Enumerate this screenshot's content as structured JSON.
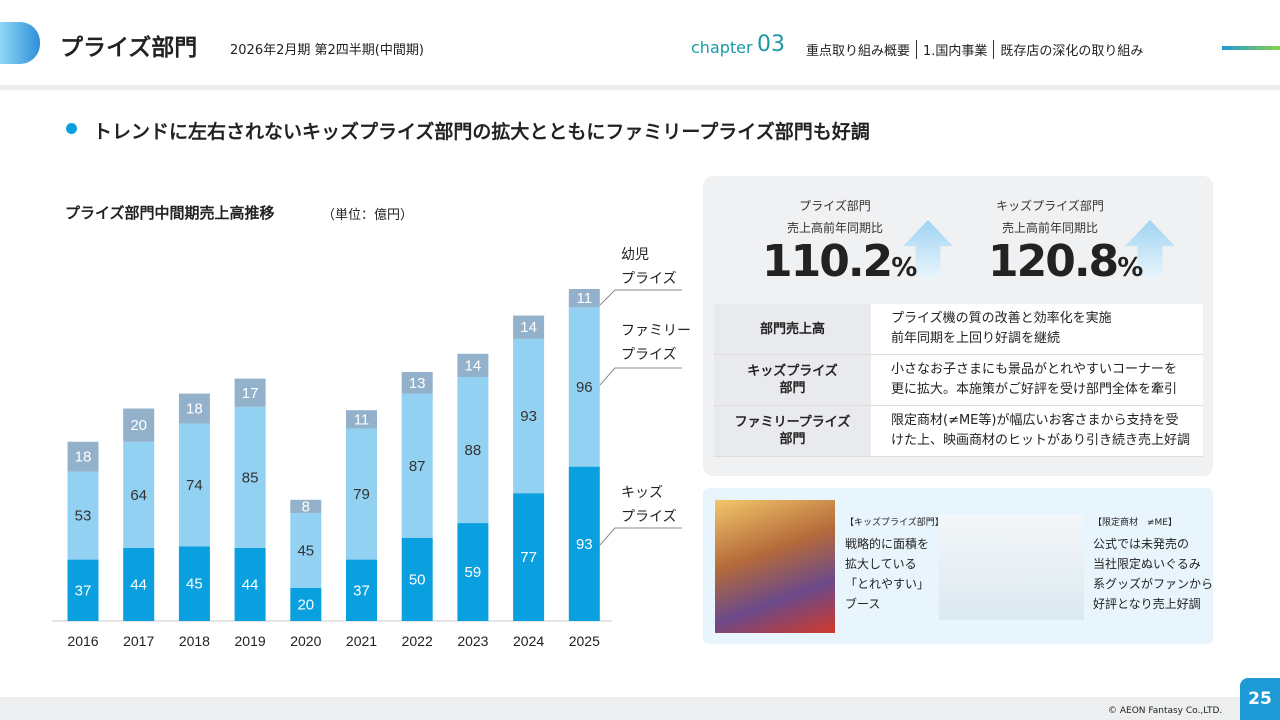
{
  "header": {
    "title": "プライズ部門",
    "period": "2026年2月期 第2四半期(中間期)",
    "chapter_label": "chapter",
    "chapter_number": "03",
    "breadcrumb": [
      "重点取り組み概要",
      "1.国内事業",
      "既存店の深化の取り組み"
    ]
  },
  "headline": "トレンドに左右されないキッズプライズ部門の拡大とともにファミリープライズ部門も好調",
  "chart_data": {
    "type": "bar",
    "stacked": true,
    "title": "プライズ部門中間期売上高推移",
    "unit": "（単位：億円）",
    "categories": [
      "2016",
      "2017",
      "2018",
      "2019",
      "2020",
      "2021",
      "2022",
      "2023",
      "2024",
      "2025"
    ],
    "series": [
      {
        "name": "キッズ\nプライズ",
        "color": "#0a9fde",
        "values": [
          37,
          44,
          45,
          44,
          20,
          37,
          50,
          59,
          77,
          93
        ]
      },
      {
        "name": "ファミリー\nプライズ",
        "color": "#92d1f2",
        "values": [
          53,
          64,
          74,
          85,
          45,
          79,
          87,
          88,
          93,
          96
        ]
      },
      {
        "name": "幼児\nプライズ",
        "color": "#93b1ca",
        "values": [
          18,
          20,
          18,
          17,
          8,
          11,
          13,
          14,
          14,
          11
        ]
      }
    ]
  },
  "kpis": [
    {
      "label": "プライズ部門\n売上高前年同期比",
      "value": 110.2,
      "unit": "%"
    },
    {
      "label": "キッズプライズ部門\n売上高前年同期比",
      "value": 120.8,
      "unit": "%"
    }
  ],
  "table": {
    "rows": [
      [
        "部門売上高",
        "プライズ機の質の改善と効率化を実施\n前年同期を上回り好調を継続"
      ],
      [
        "キッズプライズ\n部門",
        "小さなお子さまにも景品がとれやすいコーナーを\n更に拡大。本施策がご好評を受け部門全体を牽引"
      ],
      [
        "ファミリープライズ\n部門",
        "限定商材(≠ME等)が幅広いお客さまから支持を受\nけた上、映画商材のヒットがあり引き続き売上好調"
      ]
    ]
  },
  "photos": [
    {
      "tag": "【キッズプライズ部門】",
      "caption": "戦略的に面積を\n拡大している\n「とれやすい」\nブース"
    },
    {
      "tag": "【限定商材　≠ME】",
      "caption": "公式では未発売の\n当社限定ぬいぐるみ\n系グッズがファンから\n好評となり売上好調"
    }
  ],
  "footer": {
    "copyright": "© AEON Fantasy Co.,LTD.",
    "page": "25"
  }
}
